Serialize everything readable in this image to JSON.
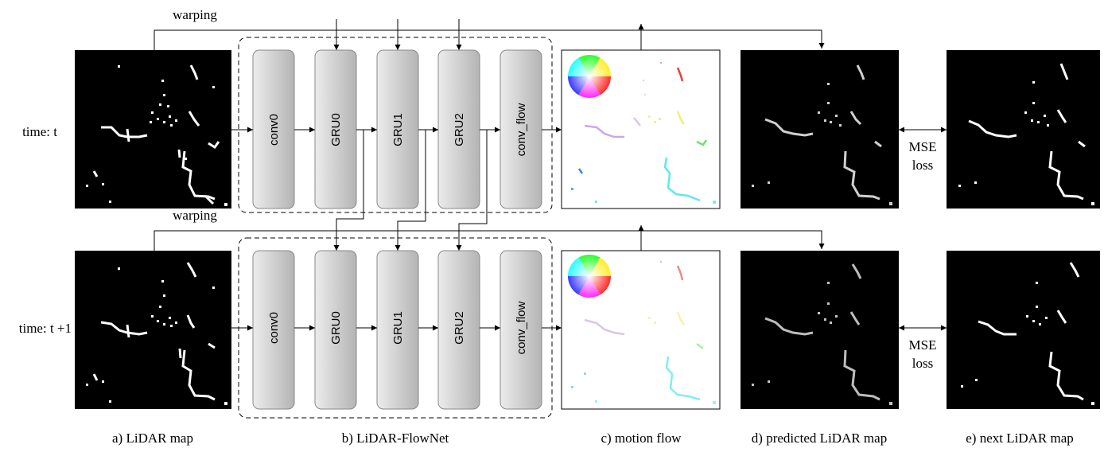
{
  "rows": [
    {
      "time_label": "time: t",
      "warping_label": "warping",
      "loss_label_line1": "MSE",
      "loss_label_line2": "loss"
    },
    {
      "time_label": "time: t +1",
      "warping_label": "warping",
      "loss_label_line1": "MSE",
      "loss_label_line2": "loss"
    }
  ],
  "network_layers": [
    "conv0",
    "GRU0",
    "GRU1",
    "GRU2",
    "conv_flow"
  ],
  "captions": {
    "lidar_map": "a) LiDAR map",
    "flownet": "b) LiDAR-FlowNet",
    "motion_flow": "c) motion flow",
    "predicted_map": "d) predicted LiDAR map",
    "next_map": "e) next LiDAR map"
  },
  "colors": {
    "layer_fill_light": "#ececec",
    "layer_fill_dark": "#b4b4b4",
    "map_background": "#000000",
    "lidar_points": "#ffffff",
    "flow_background": "#ffffff"
  }
}
